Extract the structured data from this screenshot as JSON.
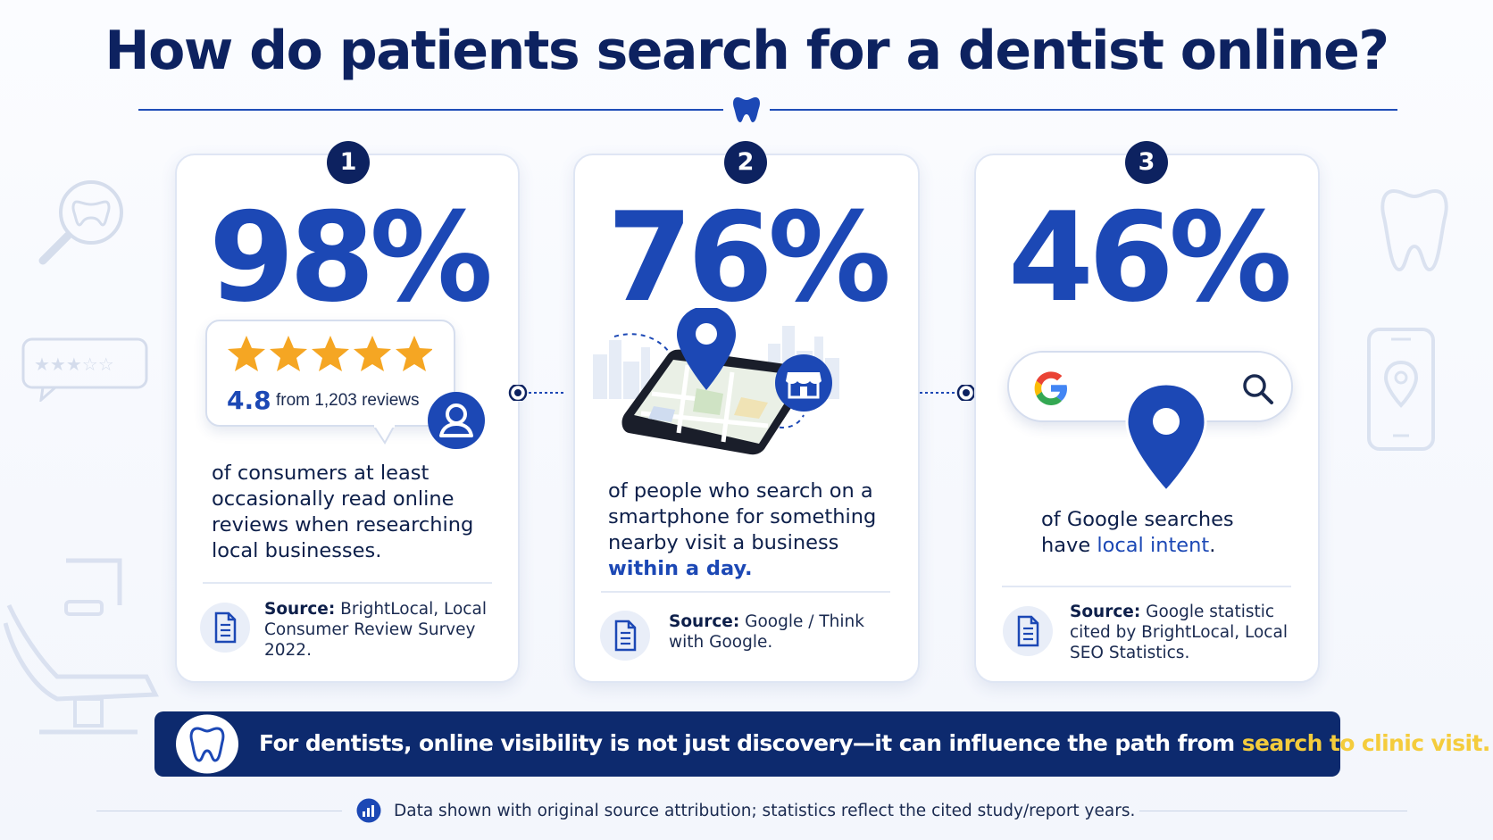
{
  "title": "How do patients search for a dentist online?",
  "colors": {
    "navy": "#0d2260",
    "accent_blue": "#1c48b5",
    "banner_bg": "#0d2a6e",
    "highlight_yellow": "#f4cc3c",
    "star_gold": "#f5a623"
  },
  "cards": [
    {
      "number": "1",
      "stat": "98%",
      "rating_value": "4.8",
      "rating_text": "from 1,203 reviews",
      "stars": 5,
      "description": "of consumers at least occasionally read online reviews when researching local businesses.",
      "source_label": "Source:",
      "source_text": "BrightLocal, Local Consumer Review Survey 2022."
    },
    {
      "number": "2",
      "stat": "76%",
      "description": "of people who search on a smartphone for something nearby visit a business",
      "description_highlight": "within a day.",
      "source_label": "Source:",
      "source_text": "Google / Think with Google."
    },
    {
      "number": "3",
      "stat": "46%",
      "description": "of Google searches have",
      "description_highlight": "local intent",
      "description_end": ".",
      "source_label": "Source:",
      "source_text": "Google statistic cited by BrightLocal, Local SEO Statistics."
    }
  ],
  "banner": {
    "text": "For dentists, online visibility is not just discovery—it can influence the path from",
    "highlight": "search to clinic visit."
  },
  "footer": "Data shown with original source attribution; statistics reflect the cited study/report years.",
  "icons": [
    "tooth-icon",
    "magnifier-tooth-icon",
    "review-bubble-icon",
    "dental-chair-icon",
    "phone-location-icon",
    "star-icon",
    "user-icon",
    "document-icon",
    "map-pin-icon",
    "store-icon",
    "google-g-icon",
    "search-icon",
    "bar-chart-icon"
  ]
}
